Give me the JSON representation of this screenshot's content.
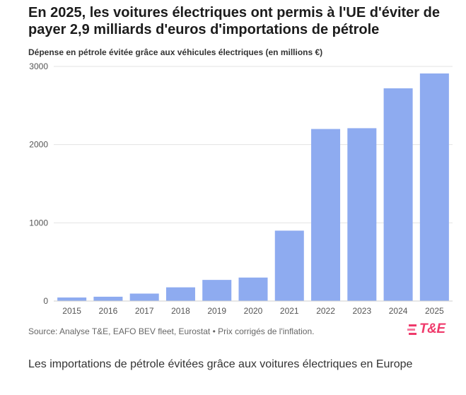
{
  "header": {
    "title": "En 2025, les voitures électriques ont permis à l'UE d'éviter de payer 2,9 milliards d'euros d'importations de pétrole",
    "subtitle": "Dépense en pétrole évitée grâce aux véhicules électriques (en millions €)"
  },
  "footer": {
    "source": "Source: Analyse T&E, EAFO BEV fleet, Eurostat • Prix corrigés de l'inflation.",
    "logo_text": "T&E",
    "caption": "Les importations de pétrole évitées grâce aux voitures électriques en Europe"
  },
  "colors": {
    "bar": "#8eabf0",
    "grid": "#e3e3e3",
    "axis_text": "#555555",
    "logo": "#ef3a6b"
  },
  "chart_data": {
    "type": "bar",
    "title": "Dépense en pétrole évitée grâce aux véhicules électriques (en millions €)",
    "categories": [
      "2015",
      "2016",
      "2017",
      "2018",
      "2019",
      "2020",
      "2021",
      "2022",
      "2023",
      "2024",
      "2025"
    ],
    "values": [
      45,
      55,
      95,
      175,
      270,
      300,
      900,
      2200,
      2210,
      2720,
      2910
    ],
    "xlabel": "",
    "ylabel": "",
    "ylim": [
      0,
      3000
    ],
    "yticks": [
      0,
      1000,
      2000,
      3000
    ],
    "grid": true,
    "legend": "none"
  }
}
